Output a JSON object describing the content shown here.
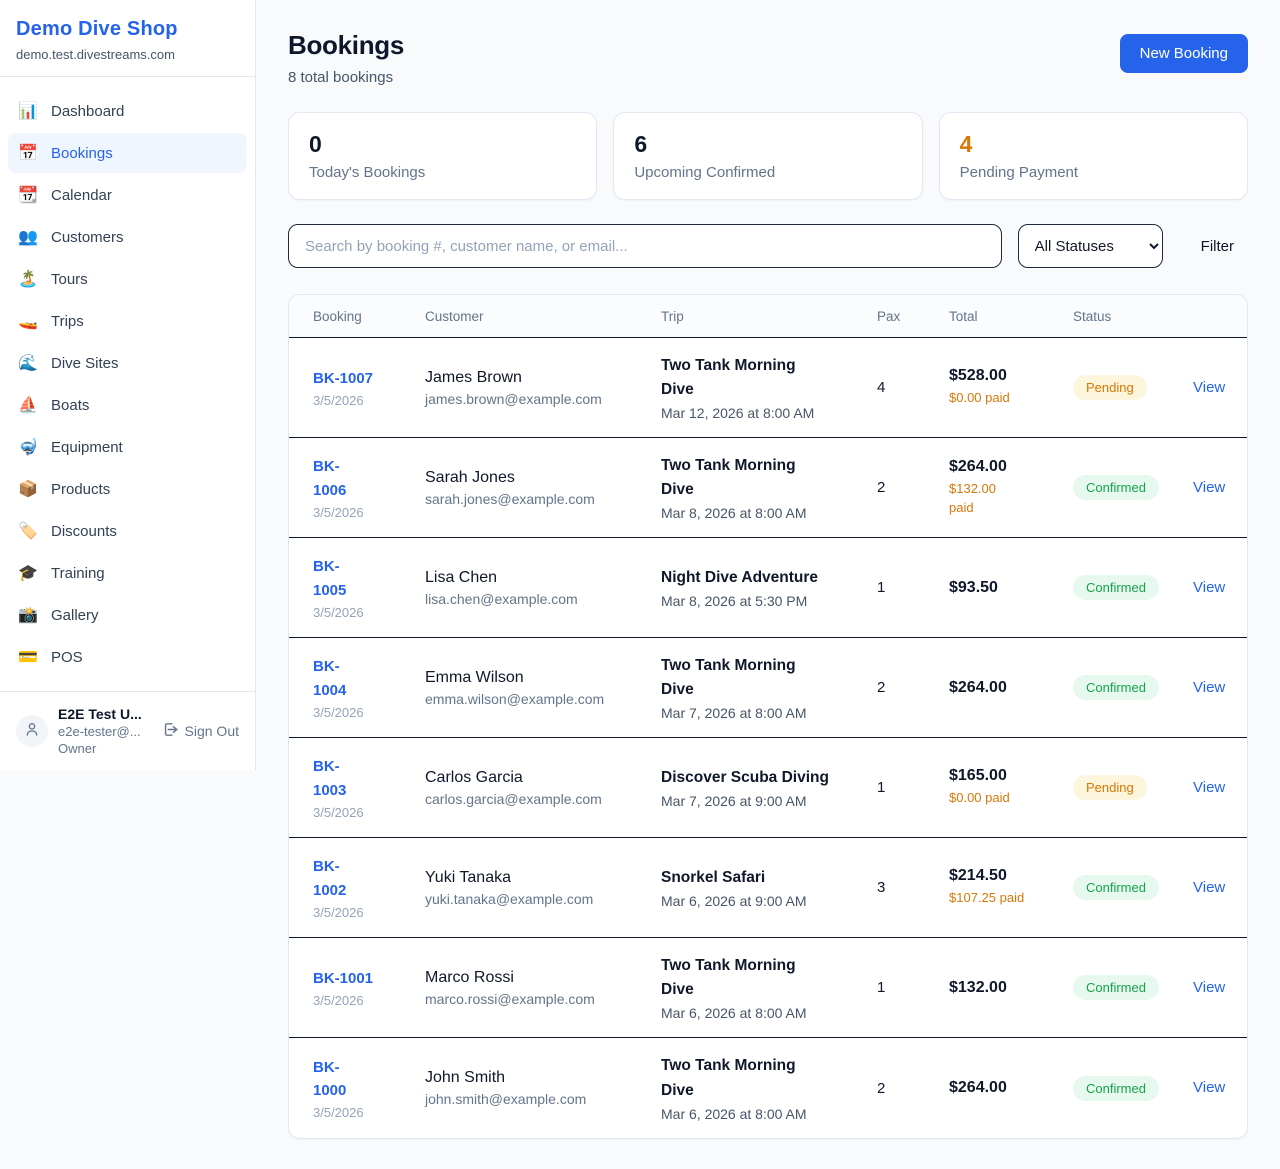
{
  "sidebar": {
    "brand": {
      "name": "Demo Dive Shop",
      "domain": "demo.test.divestreams.com"
    },
    "nav": [
      {
        "label": "Dashboard",
        "icon_name": "bar-chart-icon",
        "icon": "📊",
        "active": false
      },
      {
        "label": "Bookings",
        "icon_name": "calendar-date-icon",
        "icon": "📅",
        "active": true
      },
      {
        "label": "Calendar",
        "icon_name": "tear-off-calendar-icon",
        "icon": "📆",
        "active": false
      },
      {
        "label": "Customers",
        "icon_name": "people-icon",
        "icon": "👥",
        "active": false
      },
      {
        "label": "Tours",
        "icon_name": "island-icon",
        "icon": "🏝️",
        "active": false
      },
      {
        "label": "Trips",
        "icon_name": "speedboat-icon",
        "icon": "🚤",
        "active": false
      },
      {
        "label": "Dive Sites",
        "icon_name": "wave-icon",
        "icon": "🌊",
        "active": false
      },
      {
        "label": "Boats",
        "icon_name": "sailboat-icon",
        "icon": "⛵",
        "active": false
      },
      {
        "label": "Equipment",
        "icon_name": "diving-mask-icon",
        "icon": "🤿",
        "active": false
      },
      {
        "label": "Products",
        "icon_name": "package-icon",
        "icon": "📦",
        "active": false
      },
      {
        "label": "Discounts",
        "icon_name": "label-tag-icon",
        "icon": "🏷️",
        "active": false
      },
      {
        "label": "Training",
        "icon_name": "graduation-cap-icon",
        "icon": "🎓",
        "active": false
      },
      {
        "label": "Gallery",
        "icon_name": "camera-icon",
        "icon": "📸",
        "active": false
      },
      {
        "label": "POS",
        "icon_name": "credit-card-icon",
        "icon": "💳",
        "active": false
      }
    ],
    "user": {
      "name": "E2E Test U...",
      "email": "e2e-tester@...",
      "role": "Owner",
      "sign_out_label": "Sign Out"
    }
  },
  "header": {
    "title": "Bookings",
    "subtitle": "8 total bookings",
    "new_booking_label": "New Booking"
  },
  "stats": [
    {
      "value": "0",
      "label": "Today's Bookings",
      "value_color": "#0f172a"
    },
    {
      "value": "6",
      "label": "Upcoming Confirmed",
      "value_color": "#0f172a"
    },
    {
      "value": "4",
      "label": "Pending Payment",
      "value_color": "#d97706"
    }
  ],
  "controls": {
    "search_placeholder": "Search by booking #, customer name, or email...",
    "search_value": "",
    "status_filter_selected": "All Statuses",
    "filter_label": "Filter"
  },
  "table": {
    "columns": [
      "Booking",
      "Customer",
      "Trip",
      "Pax",
      "Total",
      "Status",
      ""
    ],
    "rows": [
      {
        "number": "BK-1007",
        "date": "3/5/2026",
        "customer": "James Brown",
        "email": "james.brown@example.com",
        "trip": "Two Tank Morning Dive",
        "trip_datetime": "Mar 12, 2026 at 8:00 AM",
        "pax": "4",
        "total": "$528.00",
        "paid": "$0.00 paid",
        "status": "Pending",
        "action": "View"
      },
      {
        "number": "BK-\n1006",
        "date": "3/5/2026",
        "customer": "Sarah Jones",
        "email": "sarah.jones@example.com",
        "trip": "Two Tank Morning Dive",
        "trip_datetime": "Mar 8, 2026 at 8:00 AM",
        "pax": "2",
        "total": "$264.00",
        "paid": "$132.00\npaid",
        "status": "Confirmed",
        "action": "View"
      },
      {
        "number": "BK-\n1005",
        "date": "3/5/2026",
        "customer": "Lisa Chen",
        "email": "lisa.chen@example.com",
        "trip": "Night Dive Adventure",
        "trip_datetime": "Mar 8, 2026 at 5:30 PM",
        "pax": "1",
        "total": "$93.50",
        "paid": "",
        "status": "Confirmed",
        "action": "View"
      },
      {
        "number": "BK-\n1004",
        "date": "3/5/2026",
        "customer": "Emma Wilson",
        "email": "emma.wilson@example.com",
        "trip": "Two Tank Morning Dive",
        "trip_datetime": "Mar 7, 2026 at 8:00 AM",
        "pax": "2",
        "total": "$264.00",
        "paid": "",
        "status": "Confirmed",
        "action": "View"
      },
      {
        "number": "BK-\n1003",
        "date": "3/5/2026",
        "customer": "Carlos Garcia",
        "email": "carlos.garcia@example.com",
        "trip": "Discover Scuba Diving",
        "trip_datetime": "Mar 7, 2026 at 9:00 AM",
        "pax": "1",
        "total": "$165.00",
        "paid": "$0.00 paid",
        "status": "Pending",
        "action": "View"
      },
      {
        "number": "BK-\n1002",
        "date": "3/5/2026",
        "customer": "Yuki Tanaka",
        "email": "yuki.tanaka@example.com",
        "trip": "Snorkel Safari",
        "trip_datetime": "Mar 6, 2026 at 9:00 AM",
        "pax": "3",
        "total": "$214.50",
        "paid": "$107.25 paid",
        "status": "Confirmed",
        "action": "View"
      },
      {
        "number": "BK-1001",
        "date": "3/5/2026",
        "customer": "Marco Rossi",
        "email": "marco.rossi@example.com",
        "trip": "Two Tank Morning Dive",
        "trip_datetime": "Mar 6, 2026 at 8:00 AM",
        "pax": "1",
        "total": "$132.00",
        "paid": "",
        "status": "Confirmed",
        "action": "View"
      },
      {
        "number": "BK-\n1000",
        "date": "3/5/2026",
        "customer": "John Smith",
        "email": "john.smith@example.com",
        "trip": "Two Tank Morning Dive",
        "trip_datetime": "Mar 6, 2026 at 8:00 AM",
        "pax": "2",
        "total": "$264.00",
        "paid": "",
        "status": "Confirmed",
        "action": "View"
      }
    ]
  },
  "colors": {
    "brand_blue": "#2563eb",
    "pending_text": "#d97706",
    "pending_bg": "#fdf5dc",
    "confirmed_text": "#16a34a",
    "confirmed_bg": "#e7f8ee",
    "page_bg": "#f8fafc"
  }
}
